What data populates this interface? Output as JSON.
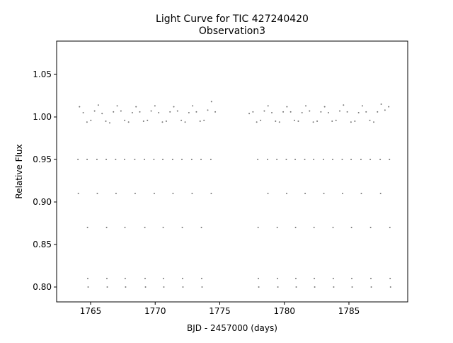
{
  "chart_data": {
    "type": "scatter",
    "title": "Light Curve for TIC 427240420",
    "subtitle": "Observation3",
    "xlabel": "BJD - 2457000 (days)",
    "ylabel": "Relative Flux",
    "color": "#777777",
    "xlim": [
      1762.37,
      1789.55
    ],
    "ylim": [
      0.7825,
      1.0892
    ],
    "xticks": [
      1765,
      1770,
      1775,
      1780,
      1785
    ],
    "yticks": [
      {
        "value": 0.8,
        "label": "0.80"
      },
      {
        "value": 0.85,
        "label": "0.85"
      },
      {
        "value": 0.9,
        "label": "0.90"
      },
      {
        "value": 0.95,
        "label": "0.95"
      },
      {
        "value": 1.0,
        "label": "1.00"
      },
      {
        "value": 1.05,
        "label": "1.05"
      }
    ],
    "x": [
      1764.14,
      1764.43,
      1764.72,
      1765.02,
      1765.31,
      1765.6,
      1765.89,
      1766.18,
      1766.48,
      1766.77,
      1767.06,
      1767.35,
      1767.64,
      1767.94,
      1768.23,
      1768.52,
      1768.81,
      1769.1,
      1769.4,
      1769.69,
      1769.98,
      1770.27,
      1770.56,
      1770.86,
      1771.15,
      1771.44,
      1771.73,
      1772.02,
      1772.32,
      1772.61,
      1772.9,
      1773.19,
      1773.48,
      1773.78,
      1774.07,
      1774.36,
      1774.65,
      1777.28,
      1777.57,
      1777.86,
      1778.16,
      1778.45,
      1778.74,
      1779.03,
      1779.32,
      1779.62,
      1779.91,
      1780.2,
      1780.49,
      1780.78,
      1781.08,
      1781.37,
      1781.66,
      1781.95,
      1782.24,
      1782.54,
      1782.83,
      1783.12,
      1783.41,
      1783.7,
      1784.0,
      1784.29,
      1784.58,
      1784.87,
      1785.16,
      1785.46,
      1785.75,
      1786.04,
      1786.33,
      1786.62,
      1786.92,
      1787.21,
      1787.5,
      1787.79,
      1788.08,
      1764.73,
      1764.76,
      1764.78,
      1764.81,
      1766.21,
      1766.24,
      1766.26,
      1766.29,
      1767.63,
      1767.66,
      1767.68,
      1767.71,
      1769.17,
      1769.2,
      1769.22,
      1769.25,
      1770.59,
      1770.62,
      1770.64,
      1770.67,
      1772.07,
      1772.1,
      1772.12,
      1772.15,
      1773.55,
      1773.58,
      1773.6,
      1773.63,
      1777.94,
      1777.97,
      1777.99,
      1778.02,
      1779.42,
      1779.45,
      1779.47,
      1779.5,
      1780.84,
      1780.87,
      1780.89,
      1780.92,
      1782.27,
      1782.3,
      1782.32,
      1782.35,
      1783.74,
      1783.77,
      1783.79,
      1783.82,
      1785.17,
      1785.2,
      1785.22,
      1785.25,
      1786.65,
      1786.68,
      1786.7,
      1786.73,
      1788.14,
      1788.17,
      1788.19,
      1788.22,
      1764.02,
      1764.05,
      1765.49,
      1765.52,
      1766.94,
      1766.97,
      1768.42,
      1768.45,
      1769.9,
      1769.93,
      1771.35,
      1771.38,
      1772.83,
      1772.86,
      1774.31,
      1774.34,
      1778.7,
      1778.73,
      1780.15,
      1780.18,
      1781.58,
      1781.61,
      1783.03,
      1783.06,
      1784.48,
      1784.51,
      1785.93,
      1785.96,
      1787.42,
      1787.45
    ],
    "values": [
      1.012,
      1.005,
      0.994,
      0.996,
      1.007,
      1.014,
      1.004,
      0.995,
      0.993,
      1.006,
      1.013,
      1.007,
      0.996,
      0.994,
      1.005,
      1.012,
      1.006,
      0.995,
      0.996,
      1.007,
      1.013,
      1.005,
      0.994,
      0.995,
      1.006,
      1.012,
      1.007,
      0.996,
      0.994,
      1.005,
      1.013,
      1.006,
      0.995,
      0.996,
      1.008,
      1.018,
      1.006,
      1.004,
      1.006,
      0.994,
      0.996,
      1.007,
      1.013,
      1.005,
      0.995,
      0.994,
      1.006,
      1.012,
      1.006,
      0.996,
      0.995,
      1.005,
      1.013,
      1.007,
      0.994,
      0.995,
      1.006,
      1.012,
      1.005,
      0.995,
      0.996,
      1.007,
      1.014,
      1.006,
      0.994,
      0.995,
      1.005,
      1.013,
      1.006,
      0.996,
      0.994,
      1.006,
      1.015,
      1.008,
      1.012,
      0.95,
      0.87,
      0.81,
      0.8,
      0.95,
      0.87,
      0.81,
      0.8,
      0.95,
      0.87,
      0.81,
      0.8,
      0.95,
      0.87,
      0.81,
      0.8,
      0.95,
      0.87,
      0.81,
      0.8,
      0.95,
      0.87,
      0.81,
      0.8,
      0.95,
      0.87,
      0.81,
      0.8,
      0.95,
      0.87,
      0.81,
      0.8,
      0.95,
      0.87,
      0.81,
      0.8,
      0.95,
      0.87,
      0.81,
      0.8,
      0.95,
      0.87,
      0.81,
      0.8,
      0.95,
      0.87,
      0.81,
      0.8,
      0.95,
      0.87,
      0.81,
      0.8,
      0.95,
      0.87,
      0.81,
      0.8,
      0.95,
      0.87,
      0.81,
      0.8,
      0.95,
      0.91,
      0.95,
      0.91,
      0.95,
      0.91,
      0.95,
      0.91,
      0.95,
      0.91,
      0.95,
      0.91,
      0.95,
      0.91,
      0.95,
      0.91,
      0.95,
      0.91,
      0.95,
      0.91,
      0.95,
      0.91,
      0.95,
      0.91,
      0.95,
      0.91,
      0.95,
      0.91,
      0.95,
      0.91
    ]
  }
}
